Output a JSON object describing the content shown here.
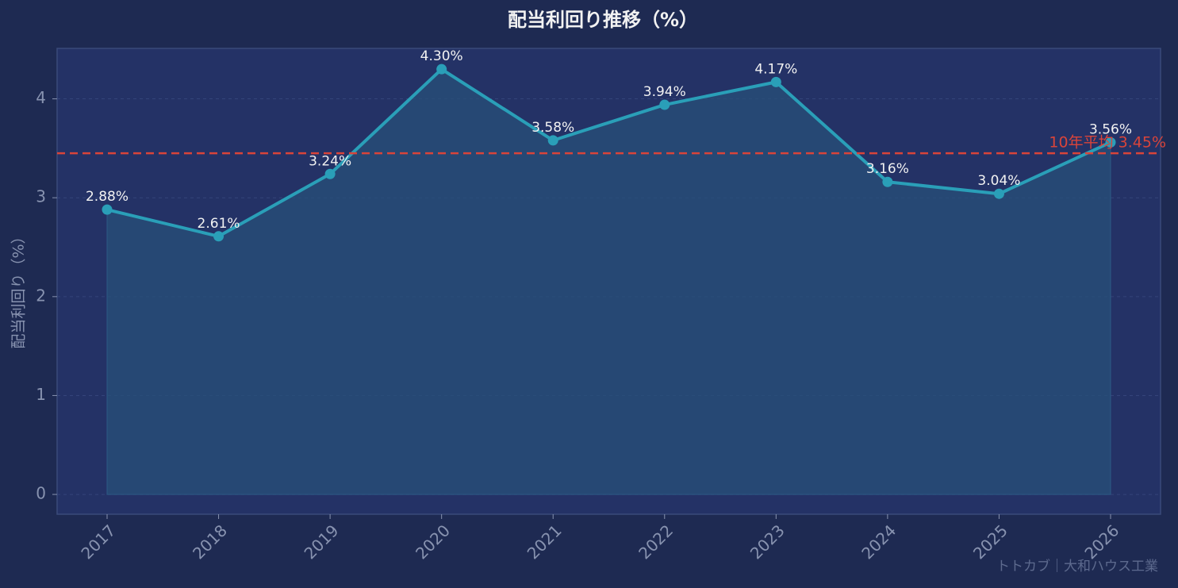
{
  "chart_data": {
    "type": "line",
    "title": "配当利回り推移（%）",
    "y_label": "配当利回り（%）",
    "categories": [
      "2017",
      "2018",
      "2019",
      "2020",
      "2021",
      "2022",
      "2023",
      "2024",
      "2025",
      "2026"
    ],
    "series": [
      {
        "name": "配当利回り",
        "color": "#2a9fb8",
        "values": [
          2.88,
          2.61,
          3.24,
          4.3,
          3.58,
          3.94,
          4.17,
          3.16,
          3.04,
          3.56
        ],
        "value_labels": [
          "2.88%",
          "2.61%",
          "3.24%",
          "4.30%",
          "3.58%",
          "3.94%",
          "4.17%",
          "3.16%",
          "3.04%",
          "3.56%"
        ]
      }
    ],
    "ylim": [
      -0.2,
      4.51
    ],
    "yticks": [
      0,
      1,
      2,
      3,
      4
    ],
    "grid": true,
    "reference_line": {
      "value": 3.45,
      "label": "10年平均 3.45%",
      "color": "#d9443a"
    },
    "watermark": "トトカブ｜大和ハウス工業"
  }
}
